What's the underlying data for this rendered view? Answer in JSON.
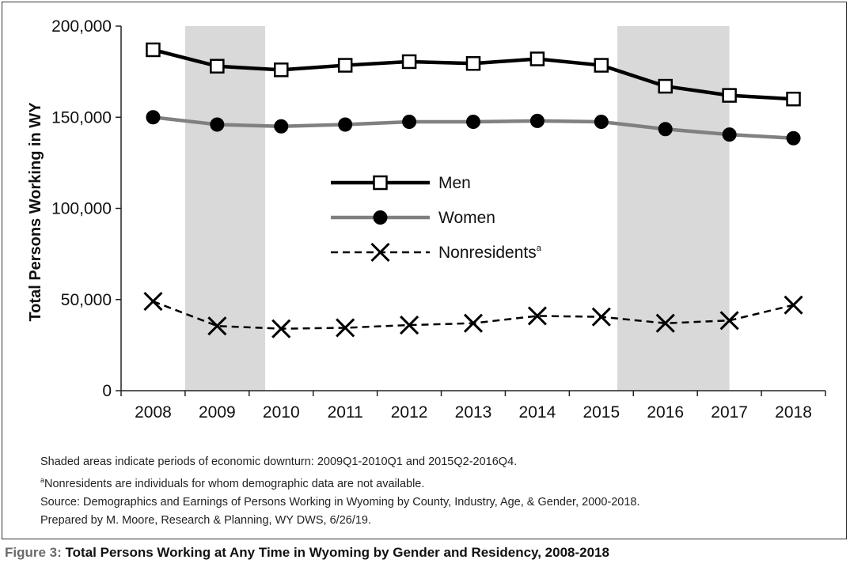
{
  "chart_data": {
    "type": "line",
    "title": "",
    "ylabel": "Total Persons Working in WY",
    "xlabel": "",
    "categories": [
      "2008",
      "2009",
      "2010",
      "2011",
      "2012",
      "2013",
      "2014",
      "2015",
      "2016",
      "2017",
      "2018"
    ],
    "ylim": [
      0,
      200000
    ],
    "yticks": [
      "0",
      "50,000",
      "100,000",
      "150,000",
      "200,000"
    ],
    "ytick_values": [
      0,
      50000,
      100000,
      150000,
      200000
    ],
    "shaded_periods": [
      {
        "start": 2008.5,
        "end": 2009.75
      },
      {
        "start": 2015.25,
        "end": 2017.0
      }
    ],
    "series": [
      {
        "name": "Men",
        "marker": "open-square",
        "color": "#000000",
        "values": [
          187000,
          178000,
          176000,
          178500,
          180500,
          179500,
          182000,
          178500,
          167000,
          162000,
          160000
        ]
      },
      {
        "name": "Women",
        "marker": "filled-circle",
        "color": "#808080",
        "values": [
          150000,
          146000,
          145000,
          146000,
          147500,
          147500,
          148000,
          147500,
          143500,
          140500,
          138500
        ]
      },
      {
        "name": "Nonresidents",
        "name_superscript": "a",
        "marker": "x",
        "color": "#000000",
        "dashed": true,
        "values": [
          49000,
          35500,
          34000,
          34500,
          36000,
          37000,
          41000,
          40500,
          37000,
          38500,
          47000
        ]
      }
    ],
    "legend_position": "center"
  },
  "notes": [
    "Shaded areas indicate periods of economic downturn: 2009Q1-2010Q1 and 2015Q2-2016Q4.",
    "Nonresidents are individuals for whom demographic data are not available.",
    "Source: Demographics and Earnings of Persons Working in Wyoming by County, Industry, Age, & Gender, 2000-2018.",
    "Prepared by M. Moore, Research & Planning, WY DWS, 6/26/19."
  ],
  "note_superscript": "a",
  "caption": {
    "figure_label": "Figure 3:",
    "text": "Total Persons Working at Any Time in Wyoming by Gender and Residency, 2008-2018"
  }
}
